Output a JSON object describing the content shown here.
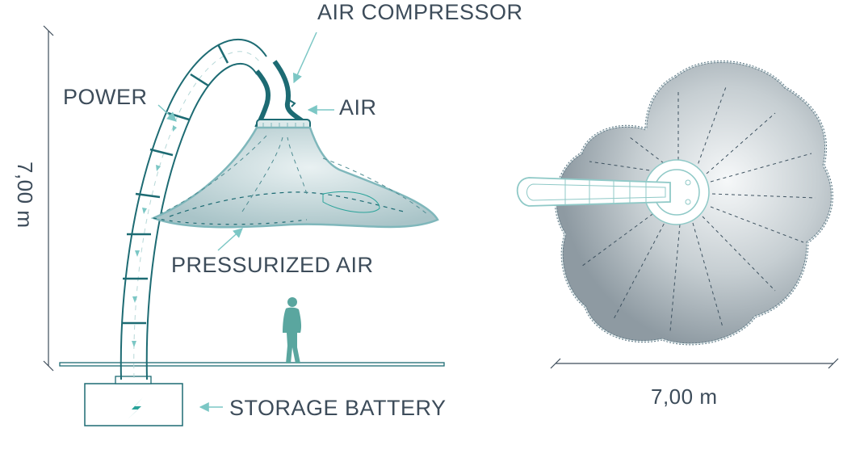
{
  "labels": {
    "air_compressor": "AIR COMPRESSOR",
    "power": "POWER",
    "air": "AIR",
    "pressurized_air": "PRESSURIZED AIR",
    "storage_battery": "STORAGE BATTERY"
  },
  "dimensions": {
    "height": "7,00 m",
    "width": "7,00 m"
  },
  "colors": {
    "structure": "#1d6b73",
    "canopy_fill": "#b7cfd3",
    "canopy_edge": "#7fb7bb",
    "text": "#3d4c5a",
    "leader": "#7cc7c5",
    "person": "#5aa69f",
    "plan_fill": "#9aa6ad",
    "plan_edge": "#5f7784"
  },
  "icons": {
    "battery": "lightning-bolt-icon",
    "person": "person-walking-icon"
  }
}
